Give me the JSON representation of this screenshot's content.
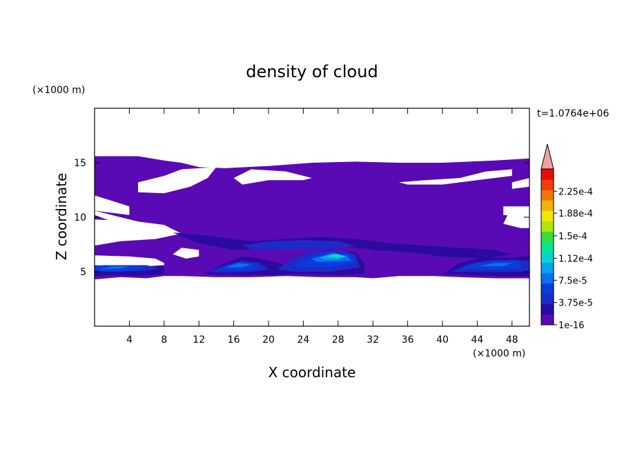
{
  "chart_data": {
    "type": "heatmap",
    "title": "density of cloud",
    "xlabel": "X coordinate",
    "ylabel": "Z coordinate",
    "x_unit": "(×1000 m)",
    "y_unit": "(×1000 m)",
    "time_label": "t=1.0764e+06",
    "xlim": [
      0,
      50
    ],
    "ylim": [
      0,
      20
    ],
    "x_ticks": [
      4,
      8,
      12,
      16,
      20,
      24,
      28,
      32,
      36,
      40,
      44,
      48
    ],
    "y_ticks": [
      5,
      10,
      15
    ],
    "colorbar": {
      "colors": [
        "#5a0ab4",
        "#2a0aa0",
        "#1e2ac8",
        "#0a3cdc",
        "#0a6ef0",
        "#0aa0f0",
        "#0ad2d2",
        "#0ae68c",
        "#3cdc3c",
        "#b4e60a",
        "#f0e60a",
        "#f0b40a",
        "#f0780a",
        "#f03c0a",
        "#e60a0a",
        "#f0a0a0"
      ],
      "tick_labels": [
        "1e-16",
        "3.75e-5",
        "7.5e-5",
        "1.12e-4",
        "1.5e-4",
        "1.88e-4",
        "2.25e-4"
      ],
      "tick_values": [
        0,
        3.75e-05,
        7.5e-05,
        0.000112,
        0.00015,
        0.000188,
        0.000225
      ],
      "max": 0.0002625,
      "extend": "max"
    },
    "regions": [
      {
        "level": 0,
        "points": [
          [
            0,
            4.3
          ],
          [
            3,
            4.5
          ],
          [
            6,
            4.4
          ],
          [
            8,
            4.6
          ],
          [
            10,
            4.6
          ],
          [
            14,
            4.5
          ],
          [
            18,
            4.5
          ],
          [
            22,
            4.6
          ],
          [
            26,
            4.5
          ],
          [
            30,
            4.5
          ],
          [
            32,
            4.4
          ],
          [
            35,
            4.6
          ],
          [
            39,
            4.6
          ],
          [
            42,
            4.5
          ],
          [
            46,
            4.4
          ],
          [
            50,
            4.4
          ],
          [
            50,
            10.0
          ],
          [
            47,
            10.2
          ],
          [
            47,
            11.0
          ],
          [
            50,
            11.0
          ],
          [
            50,
            15.4
          ],
          [
            46,
            15.2
          ],
          [
            40,
            15.0
          ],
          [
            35,
            15.0
          ],
          [
            30,
            15.1
          ],
          [
            25,
            15.0
          ],
          [
            20,
            14.7
          ],
          [
            15,
            14.5
          ],
          [
            12,
            14.6
          ],
          [
            10,
            15.0
          ],
          [
            8,
            15.2
          ],
          [
            5,
            15.6
          ],
          [
            2,
            15.6
          ],
          [
            0,
            15.6
          ],
          [
            0,
            12.0
          ],
          [
            2,
            11.5
          ],
          [
            4,
            11.0
          ],
          [
            4,
            10.2
          ],
          [
            0,
            10.6
          ],
          [
            0,
            9.8
          ],
          [
            5,
            9.6
          ],
          [
            8,
            9.3
          ],
          [
            10,
            8.5
          ],
          [
            7,
            8.0
          ],
          [
            3,
            7.8
          ],
          [
            0,
            7.4
          ],
          [
            0,
            6.5
          ],
          [
            4,
            6.4
          ],
          [
            7,
            6.2
          ],
          [
            8,
            5.8
          ],
          [
            8,
            5.4
          ],
          [
            5,
            5.3
          ],
          [
            3,
            5.5
          ],
          [
            0,
            5.6
          ]
        ]
      },
      {
        "level": 1,
        "points": [
          [
            0,
            5.4
          ],
          [
            3,
            5.4
          ],
          [
            6,
            5.5
          ],
          [
            8,
            5.6
          ],
          [
            8,
            4.8
          ],
          [
            5,
            4.6
          ],
          [
            2,
            4.7
          ],
          [
            0,
            4.6
          ]
        ]
      },
      {
        "level": 1,
        "points": [
          [
            12.5,
            4.8
          ],
          [
            15,
            5.8
          ],
          [
            17,
            6.4
          ],
          [
            18.5,
            6.3
          ],
          [
            20,
            6.0
          ],
          [
            22,
            5.6
          ],
          [
            24,
            6.6
          ],
          [
            27,
            7.0
          ],
          [
            30,
            6.8
          ],
          [
            31,
            5.8
          ],
          [
            31,
            4.8
          ],
          [
            28,
            4.7
          ],
          [
            24,
            4.8
          ],
          [
            20,
            4.7
          ],
          [
            16,
            4.7
          ]
        ]
      },
      {
        "level": 1,
        "points": [
          [
            40,
            4.8
          ],
          [
            42,
            5.8
          ],
          [
            44,
            6.2
          ],
          [
            47,
            6.3
          ],
          [
            50,
            6.4
          ],
          [
            50,
            4.6
          ],
          [
            46,
            4.6
          ],
          [
            43,
            4.7
          ]
        ]
      },
      {
        "level": 1,
        "points": [
          [
            9,
            8.6
          ],
          [
            12,
            8.4
          ],
          [
            15,
            8.1
          ],
          [
            18,
            7.8
          ],
          [
            22,
            8.0
          ],
          [
            26,
            8.2
          ],
          [
            30,
            8.0
          ],
          [
            34,
            7.6
          ],
          [
            38,
            7.4
          ],
          [
            42,
            7.2
          ],
          [
            46,
            7.0
          ],
          [
            48,
            6.6
          ],
          [
            45,
            6.2
          ],
          [
            40,
            6.4
          ],
          [
            36,
            6.8
          ],
          [
            32,
            7.0
          ],
          [
            28,
            7.4
          ],
          [
            24,
            7.4
          ],
          [
            20,
            7.2
          ],
          [
            16,
            7.0
          ],
          [
            12,
            7.6
          ]
        ]
      },
      {
        "level": 2,
        "points": [
          [
            0,
            5.0
          ],
          [
            3,
            5.0
          ],
          [
            6,
            5.1
          ],
          [
            7.5,
            5.3
          ],
          [
            6,
            5.6
          ],
          [
            3,
            5.6
          ],
          [
            0,
            5.5
          ]
        ]
      },
      {
        "level": 2,
        "points": [
          [
            13,
            5.0
          ],
          [
            15,
            5.6
          ],
          [
            17,
            6.0
          ],
          [
            19,
            5.8
          ],
          [
            20,
            5.2
          ],
          [
            18,
            5.0
          ],
          [
            15,
            4.9
          ]
        ]
      },
      {
        "level": 2,
        "points": [
          [
            21,
            5.2
          ],
          [
            23,
            6.3
          ],
          [
            25,
            6.8
          ],
          [
            28,
            7.0
          ],
          [
            30,
            6.6
          ],
          [
            30.5,
            5.4
          ],
          [
            27,
            5.0
          ],
          [
            23,
            5.0
          ]
        ]
      },
      {
        "level": 2,
        "points": [
          [
            17,
            7.4
          ],
          [
            20,
            7.8
          ],
          [
            24,
            7.9
          ],
          [
            28,
            7.8
          ],
          [
            30,
            7.4
          ],
          [
            27,
            7.1
          ],
          [
            22,
            7.0
          ],
          [
            18,
            7.1
          ]
        ]
      },
      {
        "level": 2,
        "points": [
          [
            41,
            5.0
          ],
          [
            43,
            5.7
          ],
          [
            45,
            6.0
          ],
          [
            48,
            6.1
          ],
          [
            50,
            6.0
          ],
          [
            50,
            5.0
          ],
          [
            46,
            5.0
          ]
        ]
      },
      {
        "level": 3,
        "points": [
          [
            0,
            5.1
          ],
          [
            2,
            5.0
          ],
          [
            5,
            5.2
          ],
          [
            6,
            5.4
          ],
          [
            4,
            5.6
          ],
          [
            1,
            5.6
          ],
          [
            0,
            5.5
          ]
        ]
      },
      {
        "level": 3,
        "points": [
          [
            14,
            5.2
          ],
          [
            16,
            5.7
          ],
          [
            18,
            5.8
          ],
          [
            19,
            5.4
          ],
          [
            17,
            5.1
          ]
        ]
      },
      {
        "level": 3,
        "points": [
          [
            23,
            5.6
          ],
          [
            25,
            6.4
          ],
          [
            27,
            6.8
          ],
          [
            29.5,
            6.6
          ],
          [
            30,
            5.8
          ],
          [
            27,
            5.4
          ],
          [
            24,
            5.4
          ]
        ]
      },
      {
        "level": 3,
        "points": [
          [
            42,
            5.3
          ],
          [
            44,
            5.8
          ],
          [
            46,
            6.0
          ],
          [
            49,
            5.9
          ],
          [
            49,
            5.3
          ],
          [
            46,
            5.2
          ]
        ]
      },
      {
        "level": 4,
        "points": [
          [
            15,
            5.4
          ],
          [
            16.5,
            5.8
          ],
          [
            18,
            5.7
          ],
          [
            17,
            5.4
          ]
        ]
      },
      {
        "level": 4,
        "points": [
          [
            25,
            6.2
          ],
          [
            27,
            6.6
          ],
          [
            29,
            6.5
          ],
          [
            29.5,
            6.0
          ],
          [
            27,
            5.9
          ],
          [
            25.5,
            5.9
          ]
        ]
      },
      {
        "level": 4,
        "points": [
          [
            0.5,
            5.2
          ],
          [
            3,
            5.3
          ],
          [
            4,
            5.5
          ],
          [
            2,
            5.5
          ]
        ]
      },
      {
        "level": 4,
        "points": [
          [
            44,
            5.5
          ],
          [
            46,
            5.8
          ],
          [
            48,
            5.8
          ],
          [
            47,
            5.5
          ]
        ]
      },
      {
        "level": 5,
        "points": [
          [
            25.8,
            6.3
          ],
          [
            27.5,
            6.7
          ],
          [
            29,
            6.4
          ],
          [
            28,
            6.1
          ],
          [
            26.5,
            6.1
          ]
        ]
      },
      {
        "level": 6,
        "points": [
          [
            26.5,
            6.4
          ],
          [
            28,
            6.6
          ],
          [
            28.8,
            6.4
          ],
          [
            27.8,
            6.25
          ]
        ]
      },
      {
        "level": 7,
        "points": [
          [
            27,
            6.5
          ],
          [
            28,
            6.6
          ],
          [
            28.4,
            6.45
          ],
          [
            27.6,
            6.4
          ]
        ]
      }
    ],
    "white_gaps": [
      [
        [
          5,
          13.2
        ],
        [
          8,
          13.8
        ],
        [
          10,
          14.4
        ],
        [
          14,
          14.6
        ],
        [
          13,
          13.6
        ],
        [
          11,
          12.8
        ],
        [
          8,
          12.2
        ],
        [
          5,
          12.3
        ]
      ],
      [
        [
          16,
          13.6
        ],
        [
          18,
          14.4
        ],
        [
          22,
          14.2
        ],
        [
          25,
          13.6
        ],
        [
          24,
          13.4
        ],
        [
          20,
          13.4
        ],
        [
          17,
          13.0
        ]
      ],
      [
        [
          35,
          13.2
        ],
        [
          38,
          13.4
        ],
        [
          42,
          13.6
        ],
        [
          45,
          14.2
        ],
        [
          48,
          14.4
        ],
        [
          48,
          13.8
        ],
        [
          44,
          13.4
        ],
        [
          40,
          13.0
        ],
        [
          36,
          13.0
        ]
      ],
      [
        [
          48,
          12.6
        ],
        [
          50,
          12.8
        ],
        [
          50,
          13.6
        ],
        [
          48,
          13.2
        ]
      ],
      [
        [
          0,
          10.2
        ],
        [
          2,
          9.6
        ],
        [
          4,
          9.2
        ],
        [
          6,
          9.0
        ],
        [
          5,
          9.6
        ],
        [
          3,
          10.0
        ],
        [
          0,
          10.6
        ]
      ],
      [
        [
          47,
          9.4
        ],
        [
          49,
          9.0
        ],
        [
          50,
          9.0
        ],
        [
          50,
          10.0
        ],
        [
          47.5,
          10.2
        ]
      ],
      [
        [
          9,
          6.6
        ],
        [
          10,
          7.2
        ],
        [
          12,
          7.0
        ],
        [
          12,
          6.4
        ],
        [
          10.5,
          6.2
        ]
      ]
    ]
  }
}
